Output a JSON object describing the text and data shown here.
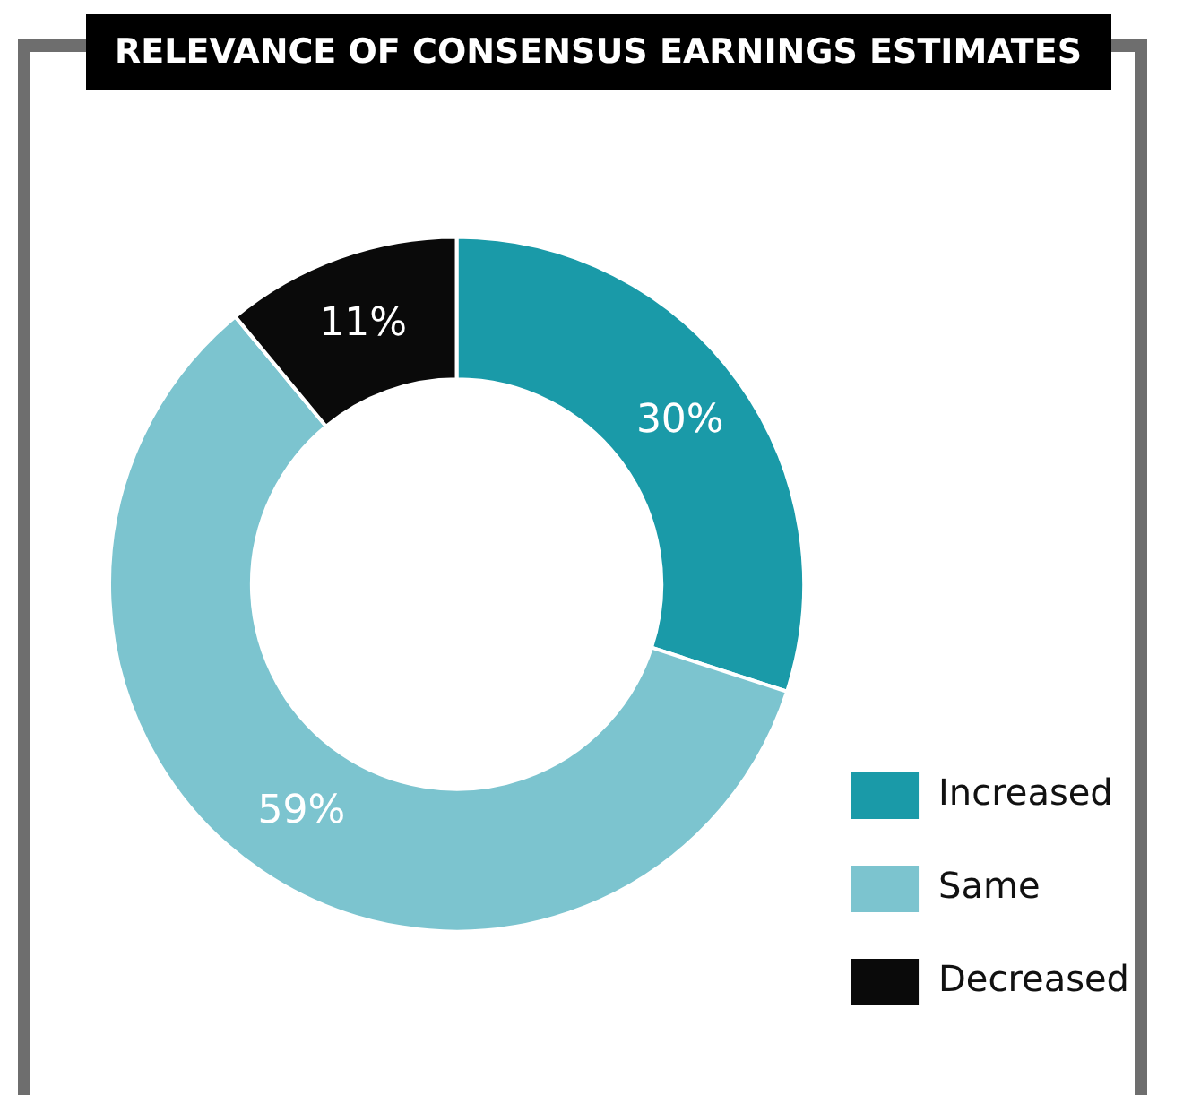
{
  "chart_data": {
    "type": "donut",
    "title": "RELEVANCE OF CONSENSUS EARNINGS ESTIMATES",
    "categories": [
      "Increased",
      "Same",
      "Decreased"
    ],
    "values": [
      30,
      59,
      11
    ],
    "colors": [
      "#1a9aa8",
      "#7cc4cf",
      "#0a0a0a"
    ],
    "value_labels": [
      "30%",
      "59%",
      "11%"
    ],
    "legend": "bottom right"
  }
}
